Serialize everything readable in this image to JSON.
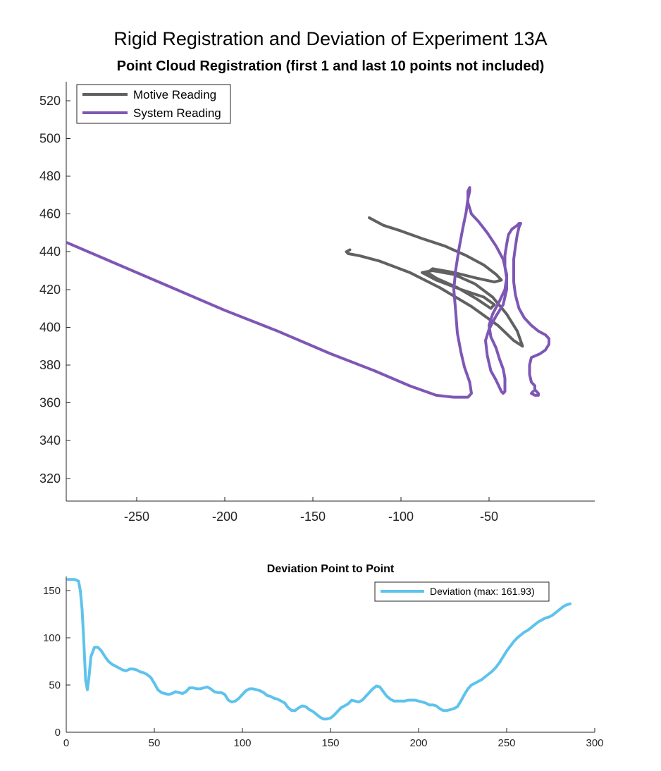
{
  "figure": {
    "title": "Rigid Registration and Deviation of Experiment 13A"
  },
  "chart_data": [
    {
      "type": "line",
      "title": "Point Cloud Registration (first 1 and last 10 points not included)",
      "xlabel": "",
      "ylabel": "",
      "xlim": [
        -290,
        10
      ],
      "ylim": [
        308,
        530
      ],
      "x_ticks": [
        -250,
        -200,
        -150,
        -100,
        -50
      ],
      "y_ticks": [
        320,
        340,
        360,
        380,
        400,
        420,
        440,
        460,
        480,
        500,
        520
      ],
      "grid": false,
      "legend_location": "top-left",
      "series": [
        {
          "name": "Motive Reading",
          "color": "#616161",
          "x": [
            -118,
            -110,
            -100,
            -88,
            -75,
            -63,
            -53,
            -46,
            -43,
            -47,
            -57,
            -70,
            -82,
            -85,
            -80,
            -68,
            -57,
            -49,
            -47,
            -53,
            -66,
            -80,
            -88,
            -82,
            -70,
            -58,
            -48,
            -40,
            -34,
            -31,
            -36,
            -45,
            -60,
            -78,
            -95,
            -112,
            -124,
            -130,
            -131,
            -129
          ],
          "y": [
            458,
            454,
            451,
            447,
            443,
            438,
            433,
            428,
            425,
            424,
            426,
            429,
            431,
            429,
            426,
            421,
            415,
            410,
            412,
            416,
            420,
            425,
            429,
            430,
            428,
            423,
            416,
            407,
            398,
            390,
            393,
            401,
            411,
            421,
            429,
            435,
            438,
            439,
            440,
            441
          ]
        },
        {
          "name": "System Reading",
          "color": "#7e57b5",
          "x": [
            -290,
            -260,
            -230,
            -200,
            -170,
            -140,
            -115,
            -95,
            -80,
            -70,
            -62,
            -60,
            -61,
            -64,
            -66,
            -68,
            -69,
            -70,
            -69,
            -67,
            -65,
            -63,
            -62,
            -61,
            -61,
            -62,
            -62,
            -60,
            -56,
            -51,
            -46,
            -42,
            -40,
            -40,
            -42,
            -46,
            -50,
            -52,
            -51,
            -49,
            -46,
            -44,
            -43,
            -42,
            -41,
            -41,
            -41,
            -42,
            -44,
            -46,
            -49,
            -50,
            -48,
            -44,
            -41,
            -40,
            -41,
            -41,
            -40,
            -39,
            -37,
            -34,
            -33,
            -32,
            -33,
            -34,
            -35,
            -36,
            -36,
            -36,
            -35,
            -33,
            -30,
            -26,
            -22,
            -18,
            -16,
            -16,
            -18,
            -21,
            -26,
            -27,
            -27,
            -26,
            -24,
            -24,
            -22,
            -22,
            -24,
            -26,
            -25
          ],
          "y": [
            445,
            433,
            421,
            409,
            398,
            386,
            377,
            369,
            364,
            363,
            363,
            365,
            371,
            379,
            387,
            397,
            409,
            420,
            430,
            442,
            452,
            461,
            468,
            472,
            474,
            472,
            466,
            460,
            456,
            450,
            443,
            436,
            428,
            420,
            412,
            406,
            399,
            393,
            385,
            377,
            372,
            368,
            366,
            365,
            366,
            369,
            373,
            378,
            383,
            389,
            395,
            401,
            407,
            414,
            420,
            426,
            432,
            438,
            444,
            449,
            452,
            454,
            455,
            455,
            453,
            449,
            443,
            436,
            430,
            424,
            417,
            410,
            405,
            401,
            398,
            396,
            394,
            391,
            388,
            386,
            384,
            380,
            375,
            371,
            369,
            367,
            365,
            364,
            364,
            365,
            366
          ]
        }
      ]
    },
    {
      "type": "line",
      "title": "Deviation Point to Point",
      "xlabel": "",
      "ylabel": "",
      "xlim": [
        0,
        300
      ],
      "ylim": [
        0,
        165
      ],
      "x_ticks": [
        0,
        50,
        100,
        150,
        200,
        250,
        300
      ],
      "y_ticks": [
        0,
        50,
        100,
        150
      ],
      "grid": false,
      "legend_location": "top-right",
      "series": [
        {
          "name": "Deviation (max: 161.93)",
          "color": "#5ec3ec",
          "x": [
            1,
            3,
            5,
            7,
            8,
            9,
            10,
            11,
            12,
            13,
            14,
            16,
            18,
            20,
            22,
            24,
            26,
            28,
            30,
            32,
            34,
            36,
            38,
            40,
            42,
            44,
            46,
            48,
            50,
            52,
            54,
            56,
            58,
            60,
            62,
            64,
            66,
            68,
            70,
            72,
            74,
            76,
            78,
            80,
            82,
            84,
            86,
            88,
            90,
            92,
            94,
            96,
            98,
            100,
            102,
            104,
            106,
            108,
            110,
            112,
            114,
            116,
            118,
            120,
            122,
            124,
            126,
            128,
            130,
            132,
            134,
            136,
            138,
            140,
            142,
            144,
            146,
            148,
            150,
            152,
            154,
            156,
            158,
            160,
            162,
            164,
            166,
            168,
            170,
            172,
            174,
            176,
            178,
            180,
            182,
            184,
            186,
            188,
            190,
            192,
            194,
            196,
            198,
            200,
            202,
            204,
            206,
            208,
            210,
            212,
            214,
            216,
            218,
            220,
            222,
            224,
            226,
            228,
            230,
            232,
            234,
            236,
            238,
            240,
            242,
            244,
            246,
            248,
            250,
            252,
            254,
            256,
            258,
            260,
            262,
            264,
            266,
            268,
            270,
            272,
            274,
            276,
            278,
            280,
            282,
            284,
            286
          ],
          "y": [
            161.93,
            161.9,
            161.8,
            160,
            150,
            130,
            95,
            55,
            45,
            60,
            80,
            90,
            90,
            86,
            80,
            75,
            72,
            70,
            68,
            66,
            65,
            67,
            67,
            66,
            64,
            63,
            61,
            58,
            52,
            45,
            42,
            41,
            40,
            41,
            43,
            42,
            41,
            43,
            47,
            47,
            46,
            46,
            47,
            48,
            46,
            43,
            42,
            42,
            40,
            34,
            32,
            33,
            36,
            40,
            44,
            46,
            46,
            45,
            44,
            42,
            39,
            38,
            36,
            35,
            33,
            31,
            26,
            23,
            23,
            26,
            28,
            27,
            24,
            22,
            19,
            16,
            14,
            14,
            15,
            18,
            22,
            26,
            28,
            30,
            34,
            33,
            32,
            34,
            38,
            42,
            46,
            49,
            48,
            43,
            38,
            35,
            33,
            33,
            33,
            33,
            34,
            34,
            34,
            33,
            32,
            31,
            29,
            29,
            28,
            25,
            23,
            23,
            24,
            25,
            27,
            33,
            40,
            46,
            50,
            52,
            54,
            56,
            59,
            62,
            65,
            69,
            74,
            80,
            86,
            91,
            96,
            100,
            103,
            106,
            108,
            111,
            114,
            117,
            119,
            121,
            122,
            124,
            127,
            130,
            133,
            135,
            136
          ]
        }
      ]
    }
  ]
}
